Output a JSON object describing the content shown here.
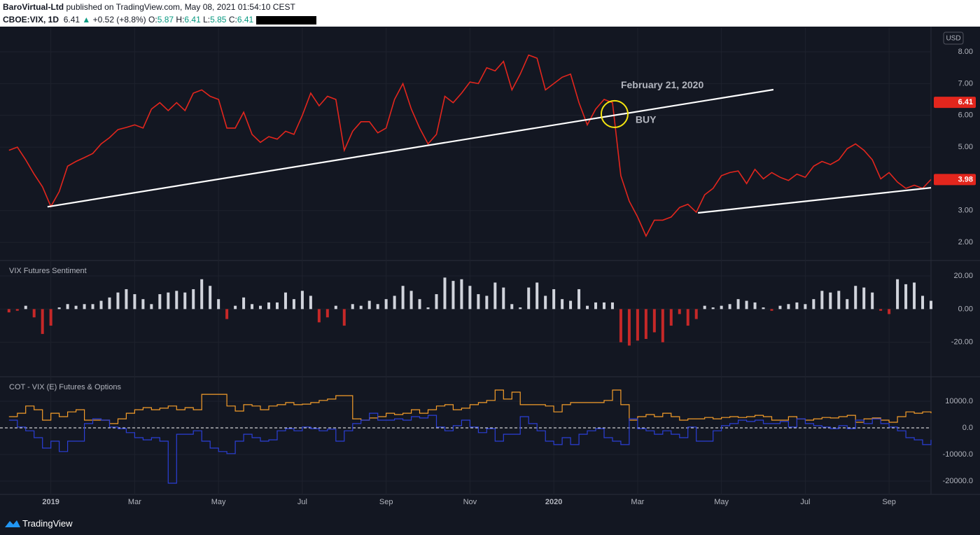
{
  "header": {
    "author": "BaroVirtual-Ltd",
    "byline": "published on TradingView.com, May 08, 2021 01:54:10 CEST",
    "symbol": "CBOE:VIX, 1D",
    "last": "6.41",
    "change": "+0.52 (+8.8%)",
    "ohlc": [
      {
        "label": "O:",
        "value": "5.87"
      },
      {
        "label": "H:",
        "value": "6.41"
      },
      {
        "label": "L:",
        "value": "5.85"
      },
      {
        "label": "C:",
        "value": "6.41"
      }
    ]
  },
  "footer": {
    "brand": "TradingView"
  },
  "chart_data": [
    {
      "type": "line",
      "currency": "USD",
      "color": "#e3261d",
      "xlim": [
        -1.08,
        21.0
      ],
      "ylim": [
        1.43,
        8.75
      ],
      "yticks": [
        {
          "value": 2,
          "label": "2.00"
        },
        {
          "value": 3,
          "label": "3.00"
        },
        {
          "value": 5,
          "label": "5.00"
        },
        {
          "value": 6,
          "label": "6.00"
        },
        {
          "value": 7,
          "label": "7.00"
        },
        {
          "value": 8,
          "label": "8.00"
        }
      ],
      "x": [
        -1,
        -0.8,
        -0.6,
        -0.4,
        -0.2,
        0,
        0.2,
        0.4,
        0.6,
        0.8,
        1,
        1.2,
        1.4,
        1.6,
        1.8,
        2,
        2.2,
        2.4,
        2.6,
        2.8,
        3,
        3.2,
        3.4,
        3.6,
        3.8,
        4,
        4.2,
        4.4,
        4.6,
        4.8,
        5,
        5.2,
        5.4,
        5.6,
        5.8,
        6,
        6.2,
        6.4,
        6.6,
        6.8,
        7,
        7.2,
        7.4,
        7.6,
        7.8,
        8,
        8.2,
        8.4,
        8.6,
        8.8,
        9,
        9.2,
        9.4,
        9.6,
        9.8,
        10,
        10.2,
        10.4,
        10.6,
        10.8,
        11,
        11.2,
        11.4,
        11.6,
        11.8,
        12,
        12.2,
        12.4,
        12.6,
        12.8,
        13,
        13.2,
        13.4,
        13.6,
        13.8,
        14,
        14.2,
        14.4,
        14.6,
        14.8,
        15,
        15.2,
        15.4,
        15.6,
        15.8,
        16,
        16.2,
        16.4,
        16.6,
        16.8,
        17,
        17.2,
        17.4,
        17.6,
        17.8,
        18,
        18.2,
        18.4,
        18.6,
        18.8,
        19,
        19.2,
        19.4,
        19.6,
        19.8,
        20,
        20.2,
        20.4,
        20.6,
        20.8,
        21
      ],
      "values": [
        4.9,
        5.0,
        4.6,
        4.15,
        3.75,
        3.13,
        3.6,
        4.4,
        4.55,
        4.67,
        4.8,
        5.1,
        5.3,
        5.55,
        5.62,
        5.7,
        5.6,
        6.2,
        6.4,
        6.15,
        6.4,
        6.15,
        6.7,
        6.8,
        6.6,
        6.5,
        5.6,
        5.6,
        6.1,
        5.4,
        5.15,
        5.33,
        5.25,
        5.5,
        5.4,
        6.0,
        6.7,
        6.3,
        6.6,
        6.5,
        4.9,
        5.5,
        5.8,
        5.8,
        5.45,
        5.6,
        6.5,
        7.0,
        6.2,
        5.6,
        5.1,
        5.4,
        6.6,
        6.4,
        6.7,
        7.05,
        7.0,
        7.5,
        7.4,
        7.7,
        6.8,
        7.3,
        7.9,
        7.8,
        6.8,
        7.0,
        7.2,
        7.3,
        6.4,
        5.7,
        6.2,
        6.5,
        6.4,
        4.1,
        3.3,
        2.8,
        2.2,
        2.7,
        2.7,
        2.8,
        3.1,
        3.2,
        2.95,
        3.5,
        3.7,
        4.1,
        4.2,
        4.25,
        3.85,
        4.3,
        4.0,
        4.2,
        4.05,
        3.95,
        4.15,
        4.05,
        4.4,
        4.55,
        4.45,
        4.6,
        4.95,
        5.1,
        4.9,
        4.6,
        4.0,
        4.2,
        3.9,
        3.7,
        3.8,
        3.7,
        3.98
      ],
      "trendlines": [
        {
          "x": [
            -0.08,
            17.24
          ],
          "y": [
            3.12,
            6.81
          ]
        },
        {
          "x": [
            15.44,
            21.0
          ],
          "y": [
            2.93,
            3.72
          ]
        }
      ],
      "annotations": [
        {
          "text": "February 21, 2020",
          "x": 13.6,
          "y": 6.94,
          "color": "#ffffff"
        },
        {
          "text": "BUY",
          "x": 13.95,
          "y": 5.84,
          "color": "#f5e50f"
        }
      ],
      "highlight": {
        "x": 13.45,
        "y": 6.04,
        "color": "#f5e50f"
      },
      "last_labels": [
        {
          "value": 6.41,
          "label": "6.41"
        },
        {
          "value": 3.98,
          "label": "3.98"
        }
      ]
    },
    {
      "type": "bar",
      "title": "VIX Futures Sentiment",
      "pos_color": "#d1d4dc",
      "neg_color": "#c62828",
      "xlim": [
        -1.08,
        21.0
      ],
      "ylim": [
        -40.8,
        29.3
      ],
      "yticks": [
        {
          "value": -20,
          "label": "-20.00"
        },
        {
          "value": 0,
          "label": "0.00"
        },
        {
          "value": 20,
          "label": "20.00"
        }
      ],
      "x": [
        -1,
        -0.8,
        -0.6,
        -0.4,
        -0.2,
        0,
        0.2,
        0.4,
        0.6,
        0.8,
        1,
        1.2,
        1.4,
        1.6,
        1.8,
        2,
        2.2,
        2.4,
        2.6,
        2.8,
        3,
        3.2,
        3.4,
        3.6,
        3.8,
        4,
        4.2,
        4.4,
        4.6,
        4.8,
        5,
        5.2,
        5.4,
        5.6,
        5.8,
        6,
        6.2,
        6.4,
        6.6,
        6.8,
        7,
        7.2,
        7.4,
        7.6,
        7.8,
        8,
        8.2,
        8.4,
        8.6,
        8.8,
        9,
        9.2,
        9.4,
        9.6,
        9.8,
        10,
        10.2,
        10.4,
        10.6,
        10.8,
        11,
        11.2,
        11.4,
        11.6,
        11.8,
        12,
        12.2,
        12.4,
        12.6,
        12.8,
        13,
        13.2,
        13.4,
        13.6,
        13.8,
        14,
        14.2,
        14.4,
        14.6,
        14.8,
        15,
        15.2,
        15.4,
        15.6,
        15.8,
        16,
        16.2,
        16.4,
        16.6,
        16.8,
        17,
        17.2,
        17.4,
        17.6,
        17.8,
        18,
        18.2,
        18.4,
        18.6,
        18.8,
        19,
        19.2,
        19.4,
        19.6,
        19.8,
        20,
        20.2,
        20.4,
        20.6,
        20.8,
        21
      ],
      "values": [
        -2,
        -1,
        2,
        -5,
        -15,
        -10,
        1,
        3,
        2,
        3,
        3,
        5,
        7,
        10,
        12,
        9,
        6,
        3,
        9,
        10,
        11,
        10,
        12,
        18,
        14,
        6,
        -6,
        2,
        7,
        3,
        2,
        4,
        4,
        10,
        6,
        11,
        8,
        -8,
        -5,
        2,
        -10,
        3,
        2,
        5,
        3,
        6,
        8,
        14,
        11,
        6,
        1,
        9,
        19,
        17,
        18,
        14,
        9,
        8,
        16,
        13,
        3,
        1,
        13,
        16,
        8,
        12,
        6,
        5,
        12,
        2,
        4,
        4,
        4,
        -20,
        -22,
        -19,
        -18,
        -14,
        -20,
        -10,
        -3,
        -10,
        -6,
        2,
        1,
        2,
        3,
        6,
        5,
        4,
        1,
        -1,
        2,
        3,
        4,
        3,
        6,
        11,
        10,
        11,
        6,
        14,
        13,
        10,
        -1,
        -3,
        18,
        15,
        16,
        8,
        5
      ]
    },
    {
      "type": "step",
      "title": "COT - VIX (E) Futures & Options",
      "xlim": [
        -1.08,
        21.0
      ],
      "ylim": [
        -25000,
        19200
      ],
      "hline": 0,
      "yticks": [
        {
          "value": -20000,
          "label": "-20000.0"
        },
        {
          "value": -10000,
          "label": "-10000.0"
        },
        {
          "value": 0,
          "label": "0.0"
        },
        {
          "value": 10000,
          "label": "10000.0"
        }
      ],
      "xticks": [
        {
          "value": 0,
          "label": "2019"
        },
        {
          "value": 2,
          "label": "Mar"
        },
        {
          "value": 4,
          "label": "May"
        },
        {
          "value": 6,
          "label": "Jul"
        },
        {
          "value": 8,
          "label": "Sep"
        },
        {
          "value": 10,
          "label": "Nov"
        },
        {
          "value": 12,
          "label": "2020"
        },
        {
          "value": 14,
          "label": "Mar"
        },
        {
          "value": 16,
          "label": "May"
        },
        {
          "value": 18,
          "label": "Jul"
        },
        {
          "value": 20,
          "label": "Sep"
        }
      ],
      "x": [
        -1,
        -0.8,
        -0.6,
        -0.4,
        -0.2,
        0,
        0.2,
        0.4,
        0.6,
        0.8,
        1,
        1.2,
        1.4,
        1.6,
        1.8,
        2,
        2.2,
        2.4,
        2.6,
        2.8,
        3,
        3.2,
        3.4,
        3.6,
        3.8,
        4,
        4.2,
        4.4,
        4.6,
        4.8,
        5,
        5.2,
        5.4,
        5.6,
        5.8,
        6,
        6.2,
        6.4,
        6.6,
        6.8,
        7,
        7.2,
        7.4,
        7.6,
        7.8,
        8,
        8.2,
        8.4,
        8.6,
        8.8,
        9,
        9.2,
        9.4,
        9.6,
        9.8,
        10,
        10.2,
        10.4,
        10.6,
        10.8,
        11,
        11.2,
        11.4,
        11.6,
        11.8,
        12,
        12.2,
        12.4,
        12.6,
        12.8,
        13,
        13.2,
        13.4,
        13.6,
        13.8,
        14,
        14.2,
        14.4,
        14.6,
        14.8,
        15,
        15.2,
        15.4,
        15.6,
        15.8,
        16,
        16.2,
        16.4,
        16.6,
        16.8,
        17,
        17.2,
        17.4,
        17.6,
        17.8,
        18,
        18.2,
        18.4,
        18.6,
        18.8,
        19,
        19.2,
        19.4,
        19.6,
        19.8,
        20,
        20.2,
        20.4,
        20.6,
        20.8,
        21
      ],
      "series": [
        {
          "color": "#f59d2a",
          "values": [
            4200,
            5500,
            8200,
            6800,
            2900,
            5500,
            4200,
            6000,
            6800,
            2900,
            2900,
            2900,
            1600,
            3400,
            5500,
            6800,
            7600,
            6800,
            7400,
            8200,
            6800,
            7600,
            6800,
            12600,
            12600,
            12600,
            8200,
            6300,
            8700,
            8200,
            6800,
            8200,
            8700,
            9500,
            8700,
            8900,
            9500,
            10300,
            10800,
            12100,
            12100,
            3400,
            2900,
            3700,
            4200,
            5500,
            5000,
            5500,
            6800,
            5500,
            6800,
            8200,
            8700,
            6800,
            7400,
            8700,
            9500,
            10300,
            14200,
            10800,
            13400,
            8700,
            8700,
            8700,
            8200,
            6000,
            8700,
            9500,
            9500,
            9500,
            9500,
            10300,
            14200,
            8700,
            2900,
            4200,
            5000,
            4200,
            5500,
            4200,
            2900,
            3400,
            3400,
            3900,
            3400,
            3900,
            4200,
            3900,
            4200,
            4700,
            4200,
            2900,
            2900,
            4200,
            3400,
            2900,
            3400,
            3900,
            3700,
            4200,
            4700,
            2100,
            3400,
            3700,
            2900,
            2100,
            4200,
            6000,
            5500,
            6000,
            5500
          ]
        },
        {
          "color": "#2b3fd6",
          "values": [
            2900,
            300,
            -1100,
            -3700,
            -7600,
            -5000,
            -8900,
            -5000,
            -5000,
            1600,
            3400,
            2900,
            300,
            -300,
            -1800,
            -3700,
            -4500,
            -3700,
            -5000,
            -20800,
            -2400,
            -2400,
            -1100,
            -5000,
            -7600,
            -8900,
            -9700,
            -5000,
            -2400,
            -3700,
            -5000,
            -4500,
            -1100,
            -300,
            -1100,
            300,
            -300,
            -1100,
            -500,
            -5000,
            -1100,
            1600,
            2900,
            5500,
            2900,
            2900,
            3400,
            2900,
            4200,
            3700,
            4700,
            300,
            -1100,
            800,
            2900,
            300,
            -1800,
            -300,
            -5000,
            -2400,
            -2400,
            4200,
            1600,
            -1100,
            -5000,
            -6300,
            -3700,
            -6300,
            -2400,
            -1100,
            -300,
            -3700,
            -5000,
            -6300,
            3400,
            -300,
            -1100,
            -2400,
            -1100,
            -2400,
            -3700,
            300,
            -5000,
            -5000,
            -1100,
            800,
            1600,
            2900,
            2400,
            2900,
            1600,
            1600,
            2400,
            300,
            3400,
            1600,
            800,
            300,
            -300,
            800,
            -300,
            2900,
            1600,
            3400,
            1600,
            300,
            -1100,
            -3700,
            -4500,
            -6300,
            -4500
          ]
        }
      ]
    }
  ]
}
